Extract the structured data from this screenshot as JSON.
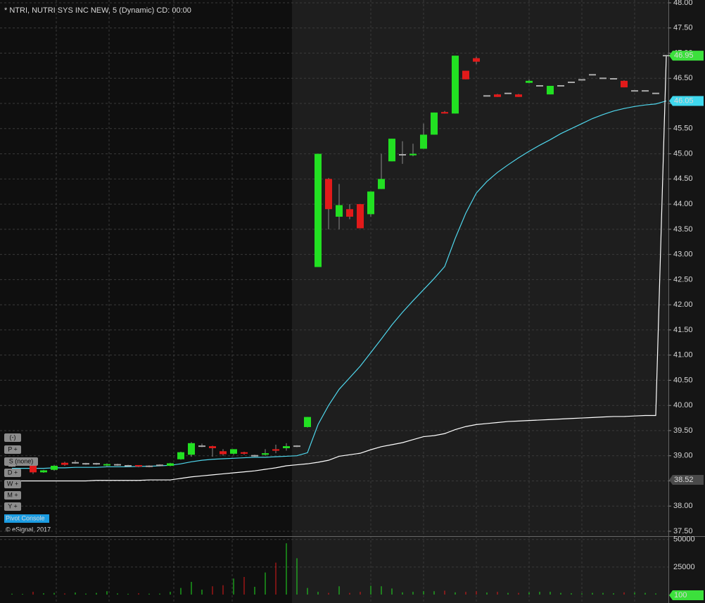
{
  "chart_data": {
    "type": "candlestick",
    "title": "* NTRI, NUTRI SYS INC NEW, 5 (Dynamic) CD: 00:00",
    "credit": "© eSignal, 2017",
    "buttons": [
      "(-)",
      "P +",
      "S (none)",
      "D +",
      "W +",
      "M +",
      "Y +"
    ],
    "console": "Pivot Console",
    "open": [
      38.8,
      38.82,
      38.82,
      38.67,
      38.72,
      38.86,
      38.86,
      38.84,
      38.84,
      38.8,
      38.82,
      38.8,
      38.8,
      38.79,
      38.81,
      38.8,
      38.93,
      39.02,
      39.19,
      39.19,
      39.09,
      39.04,
      39.07,
      39.0,
      39.02,
      39.13,
      39.15,
      39.19,
      39.57,
      42.75,
      44.5,
      43.75,
      43.9,
      44.0,
      43.8,
      44.3,
      44.85,
      44.98,
      44.97,
      45.1,
      45.38,
      45.83,
      45.8,
      46.65,
      46.9,
      46.15,
      46.18,
      46.2,
      46.18,
      46.41,
      46.35,
      46.18,
      46.35,
      46.42,
      46.47,
      46.57,
      46.5,
      46.49,
      46.45,
      46.25,
      46.25,
      46.2,
      46.95
    ],
    "high": [
      38.82,
      38.84,
      38.85,
      38.72,
      38.82,
      38.88,
      38.91,
      38.86,
      38.86,
      38.85,
      38.84,
      38.82,
      38.81,
      38.81,
      38.83,
      38.86,
      39.08,
      39.27,
      39.24,
      39.2,
      39.13,
      39.13,
      39.08,
      39.02,
      39.13,
      39.22,
      39.25,
      39.21,
      39.77,
      45.0,
      44.52,
      44.4,
      44.0,
      44.0,
      44.25,
      45.0,
      45.3,
      45.25,
      45.2,
      45.6,
      45.82,
      45.85,
      46.95,
      46.65,
      46.93,
      46.16,
      46.19,
      46.21,
      46.19,
      46.48,
      46.36,
      46.35,
      46.36,
      46.43,
      46.48,
      46.58,
      46.51,
      46.5,
      46.46,
      46.26,
      46.26,
      46.21,
      46.96
    ],
    "low": [
      38.78,
      38.8,
      38.64,
      38.66,
      38.7,
      38.8,
      38.84,
      38.82,
      38.82,
      38.78,
      38.8,
      38.78,
      38.77,
      38.77,
      38.79,
      38.79,
      38.92,
      38.98,
      39.17,
      38.98,
      39.0,
      39.02,
      39.02,
      38.98,
      39.0,
      39.05,
      39.1,
      39.17,
      39.56,
      42.75,
      43.5,
      43.5,
      43.7,
      43.52,
      43.75,
      44.3,
      44.85,
      44.8,
      44.95,
      45.1,
      45.38,
      45.8,
      45.8,
      46.48,
      46.78,
      46.14,
      46.13,
      46.19,
      46.13,
      46.4,
      46.34,
      46.18,
      46.34,
      46.41,
      46.46,
      46.56,
      46.49,
      46.48,
      46.32,
      46.24,
      46.24,
      46.19,
      46.94
    ],
    "close": [
      38.8,
      38.82,
      38.67,
      38.71,
      38.8,
      38.82,
      38.86,
      38.84,
      38.84,
      38.82,
      38.82,
      38.8,
      38.78,
      38.79,
      38.81,
      38.85,
      39.07,
      39.25,
      39.19,
      39.15,
      39.03,
      39.13,
      39.04,
      39.0,
      39.05,
      39.1,
      39.19,
      39.19,
      39.77,
      45.0,
      43.9,
      43.98,
      43.75,
      43.52,
      44.25,
      44.5,
      45.3,
      44.98,
      45.0,
      45.38,
      45.82,
      45.8,
      46.95,
      46.48,
      46.83,
      46.15,
      46.13,
      46.2,
      46.13,
      46.45,
      46.35,
      46.35,
      46.35,
      46.42,
      46.47,
      46.57,
      46.5,
      46.49,
      46.32,
      46.25,
      46.25,
      46.2,
      46.95
    ],
    "up_color": "#22e022",
    "down_color": "#e21a1a",
    "flat_color": "#aaaaaa",
    "ylim": [
      37.5,
      48
    ],
    "yticks": [
      {
        "value": 37.5,
        "label": "37.50"
      },
      {
        "value": 38,
        "label": "38.00"
      },
      {
        "value": 38.5,
        "label": "38.50"
      },
      {
        "value": 39,
        "label": "39.00"
      },
      {
        "value": 39.5,
        "label": "39.50"
      },
      {
        "value": 40,
        "label": "40.00"
      },
      {
        "value": 40.5,
        "label": "40.50"
      },
      {
        "value": 41,
        "label": "41.00"
      },
      {
        "value": 41.5,
        "label": "41.50"
      },
      {
        "value": 42,
        "label": "42.00"
      },
      {
        "value": 42.5,
        "label": "42.50"
      },
      {
        "value": 43,
        "label": "43.00"
      },
      {
        "value": 43.5,
        "label": "43.50"
      },
      {
        "value": 44,
        "label": "44.00"
      },
      {
        "value": 44.5,
        "label": "44.50"
      },
      {
        "value": 45,
        "label": "45.00"
      },
      {
        "value": 45.5,
        "label": "45.50"
      },
      {
        "value": 46,
        "label": "46.00"
      },
      {
        "value": 46.5,
        "label": "46.50"
      },
      {
        "value": 47,
        "label": "47.00"
      },
      {
        "value": 47.5,
        "label": "47.50"
      },
      {
        "value": 48,
        "label": "48.00"
      }
    ],
    "grid": true,
    "lines": [
      {
        "color": "#4fd6ec",
        "values": [
          38.75,
          38.75,
          38.75,
          38.75,
          38.76,
          38.76,
          38.77,
          38.77,
          38.77,
          38.78,
          38.78,
          38.78,
          38.79,
          38.79,
          38.8,
          38.81,
          38.84,
          38.88,
          38.91,
          38.93,
          38.94,
          38.95,
          38.96,
          38.97,
          38.97,
          38.98,
          38.99,
          39.0,
          39.06,
          39.62,
          40.0,
          40.32,
          40.55,
          40.78,
          41.05,
          41.32,
          41.6,
          41.85,
          42.08,
          42.3,
          42.52,
          42.76,
          43.32,
          43.82,
          44.22,
          44.45,
          44.63,
          44.78,
          44.92,
          45.05,
          45.17,
          45.28,
          45.4,
          45.5,
          45.6,
          45.7,
          45.78,
          45.85,
          45.9,
          45.94,
          45.97,
          45.99,
          46.05
        ]
      },
      {
        "color": "#ffffff",
        "values": [
          38.5,
          38.5,
          38.5,
          38.5,
          38.5,
          38.5,
          38.5,
          38.5,
          38.51,
          38.51,
          38.51,
          38.51,
          38.51,
          38.52,
          38.52,
          38.52,
          38.55,
          38.58,
          38.6,
          38.62,
          38.64,
          38.66,
          38.68,
          38.7,
          38.73,
          38.76,
          38.8,
          38.82,
          38.84,
          38.87,
          38.91,
          38.99,
          39.02,
          39.05,
          39.12,
          39.18,
          39.22,
          39.26,
          39.32,
          39.38,
          39.4,
          39.44,
          39.52,
          39.58,
          39.62,
          39.64,
          39.66,
          39.68,
          39.69,
          39.7,
          39.71,
          39.72,
          39.73,
          39.74,
          39.75,
          39.76,
          39.77,
          39.78,
          39.78,
          39.79,
          39.8,
          39.8,
          46.95
        ]
      }
    ],
    "markers": [
      {
        "value": 46.95,
        "color": "#3ce03c"
      },
      {
        "value": 46.05,
        "color": "#3fd8ee"
      },
      {
        "value": 38.52,
        "color": "#4a4a4a"
      }
    ],
    "volume": {
      "values": [
        800,
        600,
        2500,
        1200,
        1500,
        1000,
        1800,
        900,
        1500,
        3000,
        1000,
        700,
        1200,
        800,
        900,
        2500,
        6000,
        11500,
        4500,
        7500,
        8500,
        14500,
        16000,
        7000,
        20000,
        29000,
        46500,
        33000,
        6000,
        2500,
        1500,
        7500,
        1500,
        2500,
        8000,
        7500,
        5500,
        2000,
        2500,
        3000,
        3000,
        3500,
        2000,
        2500,
        3000,
        1800,
        2500,
        1500,
        1500,
        2000,
        2500,
        2500,
        1500,
        1200,
        1000,
        1500,
        1500,
        1200,
        2000,
        1800,
        1500,
        1000,
        100
      ],
      "ylim": [
        0,
        53000
      ],
      "yticks": [
        25000,
        50000
      ],
      "marker": {
        "value": 100,
        "color": "#3ce03c"
      }
    }
  }
}
